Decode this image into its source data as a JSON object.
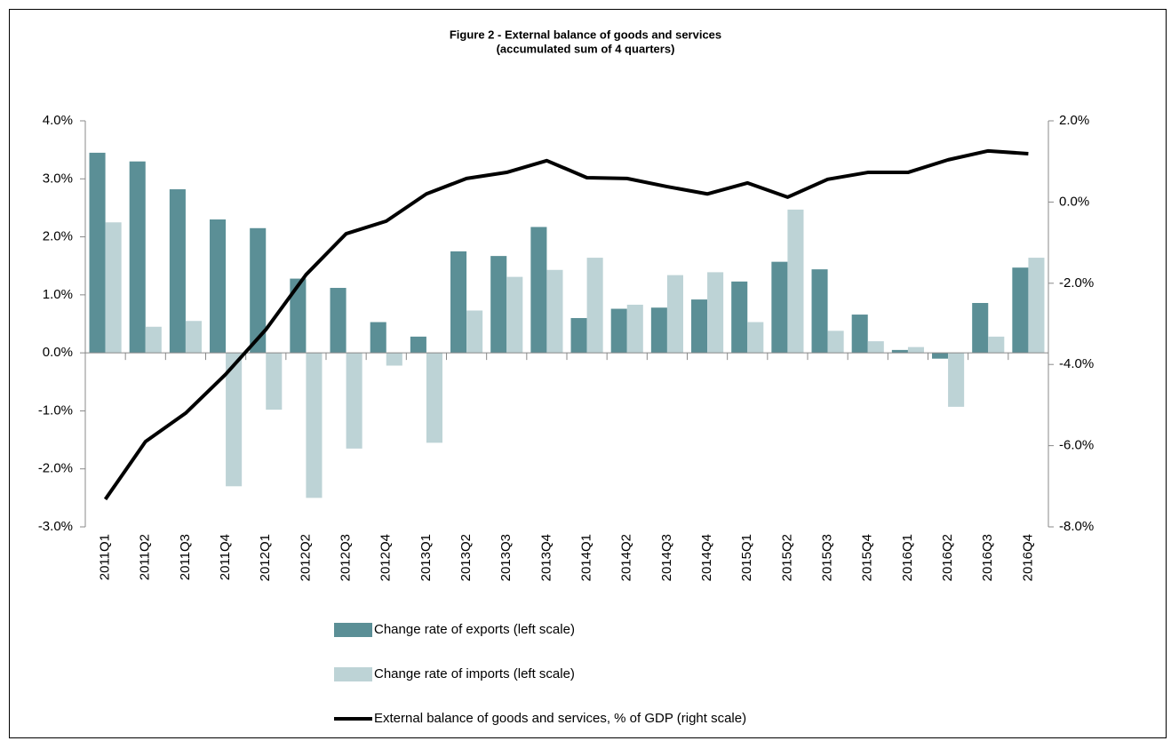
{
  "chart_data": {
    "type": "bar_line",
    "title": "Figure 2 - External balance of goods and services",
    "subtitle": "(accumulated sum of 4 quarters)",
    "categories": [
      "2011Q1",
      "2011Q2",
      "2011Q3",
      "2011Q4",
      "2012Q1",
      "2012Q2",
      "2012Q3",
      "2012Q4",
      "2013Q1",
      "2013Q2",
      "2013Q3",
      "2013Q4",
      "2014Q1",
      "2014Q2",
      "2014Q3",
      "2014Q4",
      "2015Q1",
      "2015Q2",
      "2015Q3",
      "2015Q4",
      "2016Q1",
      "2016Q2",
      "2016Q3",
      "2016Q4"
    ],
    "series": [
      {
        "name": "Change rate of exports (left scale)",
        "type": "bar",
        "color": "#5b8f96",
        "values": [
          3.45,
          3.3,
          2.82,
          2.3,
          2.15,
          1.28,
          1.12,
          0.53,
          0.28,
          1.75,
          1.67,
          2.17,
          0.6,
          0.76,
          0.78,
          0.92,
          1.23,
          1.57,
          1.44,
          0.66,
          0.05,
          -0.1,
          0.86,
          1.47
        ]
      },
      {
        "name": "Change rate of imports (left scale)",
        "type": "bar",
        "color": "#bdd3d6",
        "values": [
          2.25,
          0.45,
          0.55,
          -2.3,
          -0.98,
          -2.5,
          -1.65,
          -0.22,
          -1.55,
          0.73,
          1.31,
          1.43,
          1.64,
          0.83,
          1.34,
          1.39,
          0.53,
          2.47,
          0.38,
          0.2,
          0.1,
          -0.93,
          0.28,
          1.64
        ]
      },
      {
        "name": "External balance of goods and services, % of GDP (right scale)",
        "type": "line",
        "color": "#000000",
        "axis": "y2",
        "values": [
          -7.32,
          -5.9,
          -5.2,
          -4.24,
          -3.14,
          -1.79,
          -0.78,
          -0.47,
          0.2,
          0.58,
          0.73,
          1.02,
          0.6,
          0.58,
          0.38,
          0.2,
          0.47,
          0.12,
          0.56,
          0.73,
          0.73,
          1.04,
          1.26,
          1.19
        ]
      }
    ],
    "ylim": [
      -3,
      4
    ],
    "yticks": [
      {
        "value": -3,
        "label": "-3.0%"
      },
      {
        "value": -2,
        "label": "-2.0%"
      },
      {
        "value": -1,
        "label": "-1.0%"
      },
      {
        "value": 0,
        "label": "0.0%"
      },
      {
        "value": 1,
        "label": "1.0%"
      },
      {
        "value": 2,
        "label": "2.0%"
      },
      {
        "value": 3,
        "label": "3.0%"
      },
      {
        "value": 4,
        "label": "4.0%"
      }
    ],
    "y2lim": [
      -8,
      2
    ],
    "y2ticks": [
      {
        "value": -8,
        "label": "-8.0%"
      },
      {
        "value": -6,
        "label": "-6.0%"
      },
      {
        "value": -4,
        "label": "-4.0%"
      },
      {
        "value": -2,
        "label": "-2.0%"
      },
      {
        "value": 0,
        "label": "0.0%"
      },
      {
        "value": 2,
        "label": "2.0%"
      }
    ]
  }
}
